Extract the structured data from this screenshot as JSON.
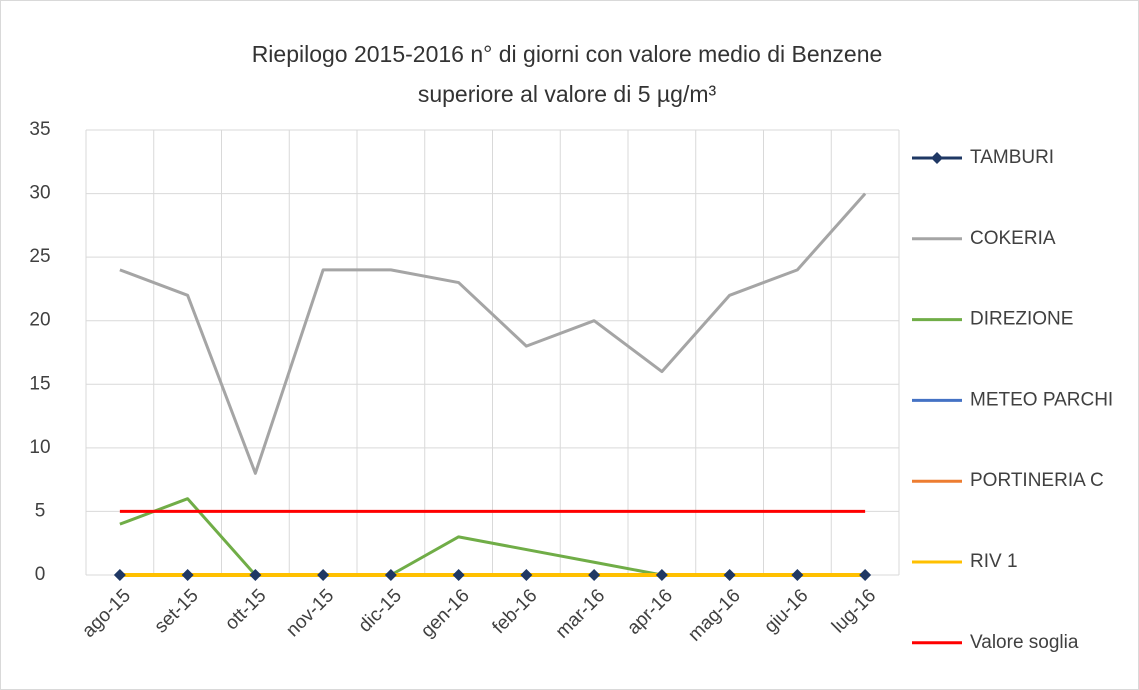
{
  "chart_data": {
    "type": "line",
    "title": [
      "Riepilogo 2015-2016 n° di giorni con valore medio di Benzene",
      "superiore al valore di 5 µg/m³"
    ],
    "categories": [
      "ago-15",
      "set-15",
      "ott-15",
      "nov-15",
      "dic-15",
      "gen-16",
      "feb-16",
      "mar-16",
      "apr-16",
      "mag-16",
      "giu-16",
      "lug-16"
    ],
    "series": [
      {
        "name": "TAMBURI",
        "color": "#1f3864",
        "marker": "diamond",
        "values": [
          0,
          0,
          0,
          0,
          0,
          0,
          0,
          0,
          0,
          0,
          0,
          0
        ]
      },
      {
        "name": "COKERIA",
        "color": "#a5a5a5",
        "values": [
          24,
          22,
          8,
          24,
          24,
          23,
          18,
          20,
          16,
          22,
          24,
          30
        ]
      },
      {
        "name": "DIREZIONE",
        "color": "#70ad47",
        "values": [
          4,
          6,
          0,
          0,
          0,
          3,
          2,
          1,
          0,
          0,
          0,
          0
        ]
      },
      {
        "name": "METEO PARCHI",
        "color": "#4472c4",
        "values": [
          0,
          0,
          0,
          0,
          0,
          0,
          0,
          0,
          0,
          0,
          0,
          0
        ]
      },
      {
        "name": "PORTINERIA C",
        "color": "#ed7d31",
        "values": [
          0,
          0,
          0,
          0,
          0,
          0,
          0,
          0,
          0,
          0,
          0,
          0
        ]
      },
      {
        "name": "RIV 1",
        "color": "#ffc000",
        "values": [
          0,
          0,
          0,
          0,
          0,
          0,
          0,
          0,
          0,
          0,
          0,
          0
        ]
      },
      {
        "name": "Valore soglia",
        "color": "#ff0000",
        "values": [
          5,
          5,
          5,
          5,
          5,
          5,
          5,
          5,
          5,
          5,
          5,
          5
        ]
      }
    ],
    "ylim": [
      0,
      35
    ],
    "yticks": [
      0,
      5,
      10,
      15,
      20,
      25,
      30,
      35
    ],
    "grid": true,
    "legend": "right"
  }
}
